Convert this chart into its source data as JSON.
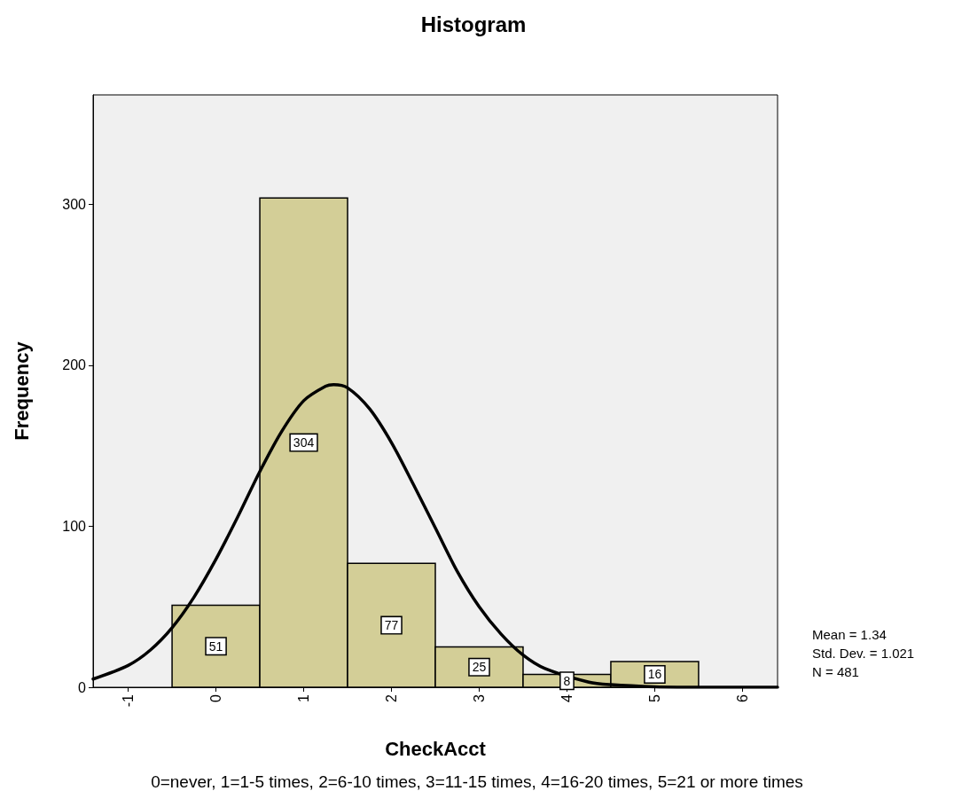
{
  "chart_data": {
    "type": "histogram",
    "title": "Histogram",
    "xlabel": "CheckAcct",
    "ylabel": "Frequency",
    "bins": [
      -0.5,
      0.5,
      1.5,
      2.5,
      3.5,
      4.5,
      5.5
    ],
    "values": [
      51,
      304,
      77,
      25,
      8,
      16
    ],
    "color": "#d3ce97",
    "value_labels": [
      "51",
      "304",
      "77",
      "25",
      "8",
      "16"
    ],
    "series": [
      {
        "type": "line",
        "color": "#000000",
        "x": [
          -1.4,
          -1,
          -0.75,
          -0.5,
          -0.25,
          0,
          0.25,
          0.5,
          0.75,
          1,
          1.25,
          1.34,
          1.5,
          1.75,
          2,
          2.25,
          2.5,
          2.75,
          3,
          3.25,
          3.5,
          3.75,
          4.25,
          4.5,
          5,
          5.5,
          6,
          6.4
        ],
        "values": [
          5.1,
          13.6,
          23,
          37,
          56,
          79.5,
          106,
          134,
          159,
          178,
          187,
          188,
          186,
          173,
          152,
          126,
          99,
          72,
          50,
          33,
          20,
          11.6,
          3.2,
          1.6,
          0.3,
          0,
          0,
          0
        ]
      }
    ],
    "xlim": [
      -1.4,
      6.4
    ],
    "xticks": [
      -1,
      0,
      1,
      2,
      3,
      4,
      5,
      6
    ],
    "ylim": [
      0,
      368
    ],
    "yticks": [
      0,
      100,
      200,
      300
    ],
    "grid": false,
    "marker": "none",
    "line_style": "solid",
    "annotations": [
      "Mean = 1.34",
      "Std. Dev. = 1.021",
      "N = 481",
      "0=never, 1=1-5 times, 2=6-10 times, 3=11-15 times, 4=16-20 times, 5=21 or more times"
    ]
  }
}
